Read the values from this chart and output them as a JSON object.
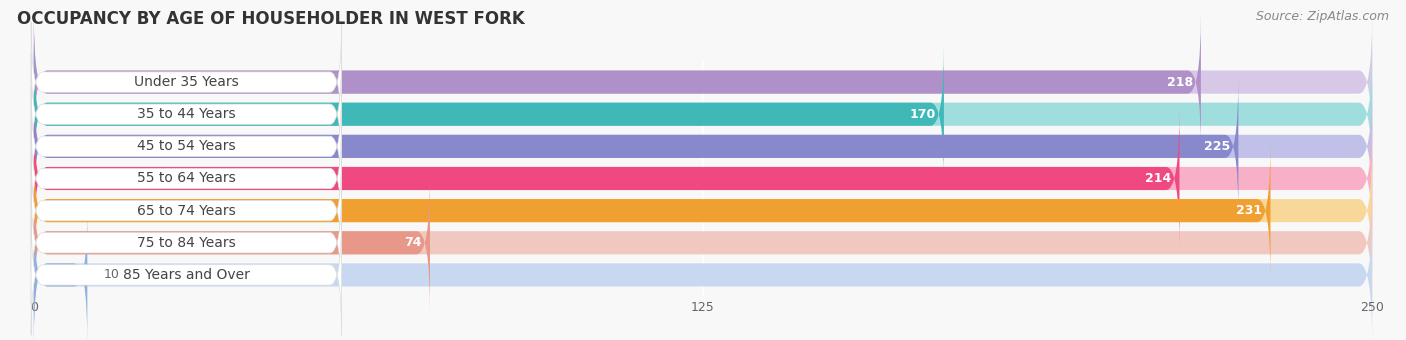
{
  "title": "OCCUPANCY BY AGE OF HOUSEHOLDER IN WEST FORK",
  "source": "Source: ZipAtlas.com",
  "categories": [
    "Under 35 Years",
    "35 to 44 Years",
    "45 to 54 Years",
    "55 to 64 Years",
    "65 to 74 Years",
    "75 to 84 Years",
    "85 Years and Over"
  ],
  "values": [
    218,
    170,
    225,
    214,
    231,
    74,
    10
  ],
  "bar_colors": [
    "#b090c8",
    "#40b8b8",
    "#8888cc",
    "#f04880",
    "#f0a030",
    "#e89888",
    "#90b0e0"
  ],
  "bar_bg_colors": [
    "#d8c8e8",
    "#a0dede",
    "#c0c0e8",
    "#f8b0c8",
    "#f8d898",
    "#f0c8c0",
    "#c8d8f0"
  ],
  "xlim": [
    -5,
    255
  ],
  "xticks": [
    0,
    125,
    250
  ],
  "xmin": 0,
  "xmax": 250,
  "title_fontsize": 12,
  "source_fontsize": 9,
  "label_fontsize": 10,
  "value_fontsize": 9,
  "background_color": "#f8f8f8",
  "label_pill_color": "#ffffff",
  "label_text_color": "#444444",
  "value_text_color_inside": "#ffffff",
  "value_text_color_outside": "#666666"
}
